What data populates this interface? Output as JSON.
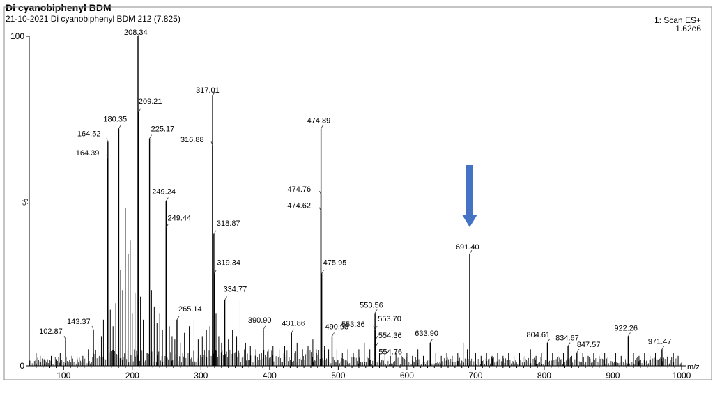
{
  "header": {
    "title": "Di cyanobiphenyl BDM",
    "subtitle": "21-10-2021 Di cyanobiphenyl BDM 212 (7.825)",
    "scan_label": "1: Scan ES+",
    "intensity": "1.62e6"
  },
  "colors": {
    "arrow": "#4472c4",
    "trace": "#000000"
  },
  "chart_data": {
    "type": "bar",
    "title": "",
    "xlabel": "m/z",
    "ylabel": "%",
    "xlim": [
      50,
      1000
    ],
    "ylim": [
      0,
      100
    ],
    "x_ticks": [
      100,
      200,
      300,
      400,
      500,
      600,
      700,
      800,
      900,
      1000
    ],
    "y_ticks": [
      0,
      100
    ],
    "grid": false,
    "peaks": [
      {
        "mz": 102.87,
        "intensity": 8,
        "label": "102.87"
      },
      {
        "mz": 143.37,
        "intensity": 11,
        "label": "143.37"
      },
      {
        "mz": 164.39,
        "intensity": 63,
        "label": "164.39"
      },
      {
        "mz": 164.52,
        "intensity": 68,
        "label": "164.52"
      },
      {
        "mz": 180.35,
        "intensity": 72,
        "label": "180.35"
      },
      {
        "mz": 208.34,
        "intensity": 100,
        "label": "208.34"
      },
      {
        "mz": 209.21,
        "intensity": 77,
        "label": "209.21"
      },
      {
        "mz": 225.17,
        "intensity": 69,
        "label": "225.17"
      },
      {
        "mz": 249.24,
        "intensity": 50,
        "label": "249.24"
      },
      {
        "mz": 249.44,
        "intensity": 42,
        "label": "249.44"
      },
      {
        "mz": 265.14,
        "intensity": 14,
        "label": "265.14"
      },
      {
        "mz": 316.88,
        "intensity": 67,
        "label": "316.88"
      },
      {
        "mz": 317.01,
        "intensity": 82,
        "label": "317.01"
      },
      {
        "mz": 318.87,
        "intensity": 40,
        "label": "318.87"
      },
      {
        "mz": 319.34,
        "intensity": 28,
        "label": "319.34"
      },
      {
        "mz": 334.77,
        "intensity": 20,
        "label": "334.77"
      },
      {
        "mz": 390.9,
        "intensity": 11,
        "label": "390.90"
      },
      {
        "mz": 431.86,
        "intensity": 10,
        "label": "431.86"
      },
      {
        "mz": 474.62,
        "intensity": 47,
        "label": "474.62"
      },
      {
        "mz": 474.76,
        "intensity": 52,
        "label": "474.76"
      },
      {
        "mz": 474.89,
        "intensity": 72,
        "label": "474.89"
      },
      {
        "mz": 475.95,
        "intensity": 28,
        "label": "475.95"
      },
      {
        "mz": 490.98,
        "intensity": 9,
        "label": "490.98"
      },
      {
        "mz": 553.36,
        "intensity": 11,
        "label": "553.36"
      },
      {
        "mz": 553.56,
        "intensity": 16,
        "label": "553.56"
      },
      {
        "mz": 553.7,
        "intensity": 11,
        "label": "553.70"
      },
      {
        "mz": 554.36,
        "intensity": 8,
        "label": "554.36"
      },
      {
        "mz": 554.76,
        "intensity": 6,
        "label": "554.76"
      },
      {
        "mz": 633.9,
        "intensity": 7,
        "label": "633.90"
      },
      {
        "mz": 691.4,
        "intensity": 34,
        "label": "691.40"
      },
      {
        "mz": 804.61,
        "intensity": 7,
        "label": "804.61"
      },
      {
        "mz": 834.67,
        "intensity": 6,
        "label": "834.67"
      },
      {
        "mz": 847.57,
        "intensity": 4,
        "label": "847.57"
      },
      {
        "mz": 922.26,
        "intensity": 9,
        "label": "922.26"
      },
      {
        "mz": 971.47,
        "intensity": 5,
        "label": "971.47"
      }
    ],
    "minor_peaks": [
      {
        "mz": 60,
        "intensity": 4
      },
      {
        "mz": 66,
        "intensity": 3
      },
      {
        "mz": 72,
        "intensity": 2
      },
      {
        "mz": 82,
        "intensity": 3
      },
      {
        "mz": 90,
        "intensity": 2
      },
      {
        "mz": 95,
        "intensity": 4
      },
      {
        "mz": 112,
        "intensity": 3
      },
      {
        "mz": 120,
        "intensity": 2
      },
      {
        "mz": 128,
        "intensity": 3
      },
      {
        "mz": 136,
        "intensity": 5
      },
      {
        "mz": 150,
        "intensity": 7
      },
      {
        "mz": 155,
        "intensity": 9
      },
      {
        "mz": 158,
        "intensity": 14
      },
      {
        "mz": 168,
        "intensity": 17
      },
      {
        "mz": 172,
        "intensity": 12
      },
      {
        "mz": 176,
        "intensity": 19
      },
      {
        "mz": 183,
        "intensity": 29
      },
      {
        "mz": 186,
        "intensity": 23
      },
      {
        "mz": 190,
        "intensity": 48
      },
      {
        "mz": 194,
        "intensity": 34
      },
      {
        "mz": 197,
        "intensity": 38
      },
      {
        "mz": 200,
        "intensity": 16
      },
      {
        "mz": 204,
        "intensity": 22
      },
      {
        "mz": 212,
        "intensity": 21
      },
      {
        "mz": 216,
        "intensity": 14
      },
      {
        "mz": 220,
        "intensity": 11
      },
      {
        "mz": 228,
        "intensity": 23
      },
      {
        "mz": 232,
        "intensity": 18
      },
      {
        "mz": 236,
        "intensity": 13
      },
      {
        "mz": 240,
        "intensity": 16
      },
      {
        "mz": 244,
        "intensity": 11
      },
      {
        "mz": 254,
        "intensity": 12
      },
      {
        "mz": 258,
        "intensity": 9
      },
      {
        "mz": 262,
        "intensity": 8
      },
      {
        "mz": 270,
        "intensity": 7
      },
      {
        "mz": 276,
        "intensity": 10
      },
      {
        "mz": 283,
        "intensity": 12
      },
      {
        "mz": 290,
        "intensity": 14
      },
      {
        "mz": 296,
        "intensity": 8
      },
      {
        "mz": 302,
        "intensity": 9
      },
      {
        "mz": 308,
        "intensity": 11
      },
      {
        "mz": 313,
        "intensity": 12
      },
      {
        "mz": 322,
        "intensity": 16
      },
      {
        "mz": 326,
        "intensity": 9
      },
      {
        "mz": 330,
        "intensity": 7
      },
      {
        "mz": 340,
        "intensity": 8
      },
      {
        "mz": 346,
        "intensity": 11
      },
      {
        "mz": 352,
        "intensity": 9
      },
      {
        "mz": 357,
        "intensity": 20
      },
      {
        "mz": 365,
        "intensity": 7
      },
      {
        "mz": 372,
        "intensity": 6
      },
      {
        "mz": 380,
        "intensity": 5
      },
      {
        "mz": 398,
        "intensity": 5
      },
      {
        "mz": 405,
        "intensity": 6
      },
      {
        "mz": 414,
        "intensity": 5
      },
      {
        "mz": 422,
        "intensity": 6
      },
      {
        "mz": 440,
        "intensity": 7
      },
      {
        "mz": 448,
        "intensity": 5
      },
      {
        "mz": 456,
        "intensity": 6
      },
      {
        "mz": 463,
        "intensity": 8
      },
      {
        "mz": 468,
        "intensity": 5
      },
      {
        "mz": 480,
        "intensity": 6
      },
      {
        "mz": 486,
        "intensity": 5
      },
      {
        "mz": 498,
        "intensity": 5
      },
      {
        "mz": 506,
        "intensity": 4
      },
      {
        "mz": 514,
        "intensity": 5
      },
      {
        "mz": 522,
        "intensity": 4
      },
      {
        "mz": 530,
        "intensity": 5
      },
      {
        "mz": 538,
        "intensity": 7
      },
      {
        "mz": 546,
        "intensity": 5
      },
      {
        "mz": 560,
        "intensity": 4
      },
      {
        "mz": 568,
        "intensity": 5
      },
      {
        "mz": 576,
        "intensity": 3
      },
      {
        "mz": 584,
        "intensity": 4
      },
      {
        "mz": 592,
        "intensity": 3
      },
      {
        "mz": 600,
        "intensity": 4
      },
      {
        "mz": 608,
        "intensity": 3
      },
      {
        "mz": 616,
        "intensity": 5
      },
      {
        "mz": 624,
        "intensity": 3
      },
      {
        "mz": 642,
        "intensity": 4
      },
      {
        "mz": 650,
        "intensity": 3
      },
      {
        "mz": 658,
        "intensity": 4
      },
      {
        "mz": 666,
        "intensity": 3
      },
      {
        "mz": 674,
        "intensity": 4
      },
      {
        "mz": 682,
        "intensity": 7
      },
      {
        "mz": 688,
        "intensity": 5
      },
      {
        "mz": 700,
        "intensity": 4
      },
      {
        "mz": 708,
        "intensity": 3
      },
      {
        "mz": 716,
        "intensity": 4
      },
      {
        "mz": 724,
        "intensity": 3
      },
      {
        "mz": 732,
        "intensity": 4
      },
      {
        "mz": 740,
        "intensity": 3
      },
      {
        "mz": 748,
        "intensity": 4
      },
      {
        "mz": 756,
        "intensity": 3
      },
      {
        "mz": 764,
        "intensity": 4
      },
      {
        "mz": 772,
        "intensity": 3
      },
      {
        "mz": 780,
        "intensity": 5
      },
      {
        "mz": 788,
        "intensity": 3
      },
      {
        "mz": 796,
        "intensity": 4
      },
      {
        "mz": 812,
        "intensity": 4
      },
      {
        "mz": 820,
        "intensity": 3
      },
      {
        "mz": 828,
        "intensity": 4
      },
      {
        "mz": 840,
        "intensity": 3
      },
      {
        "mz": 856,
        "intensity": 4
      },
      {
        "mz": 864,
        "intensity": 3
      },
      {
        "mz": 872,
        "intensity": 4
      },
      {
        "mz": 880,
        "intensity": 3
      },
      {
        "mz": 888,
        "intensity": 4
      },
      {
        "mz": 896,
        "intensity": 3
      },
      {
        "mz": 904,
        "intensity": 4
      },
      {
        "mz": 912,
        "intensity": 3
      },
      {
        "mz": 930,
        "intensity": 4
      },
      {
        "mz": 938,
        "intensity": 3
      },
      {
        "mz": 946,
        "intensity": 4
      },
      {
        "mz": 954,
        "intensity": 3
      },
      {
        "mz": 962,
        "intensity": 4
      },
      {
        "mz": 980,
        "intensity": 3
      },
      {
        "mz": 988,
        "intensity": 4
      },
      {
        "mz": 995,
        "intensity": 3
      }
    ],
    "annotation": {
      "type": "arrow",
      "target_mz": 691.4
    }
  }
}
